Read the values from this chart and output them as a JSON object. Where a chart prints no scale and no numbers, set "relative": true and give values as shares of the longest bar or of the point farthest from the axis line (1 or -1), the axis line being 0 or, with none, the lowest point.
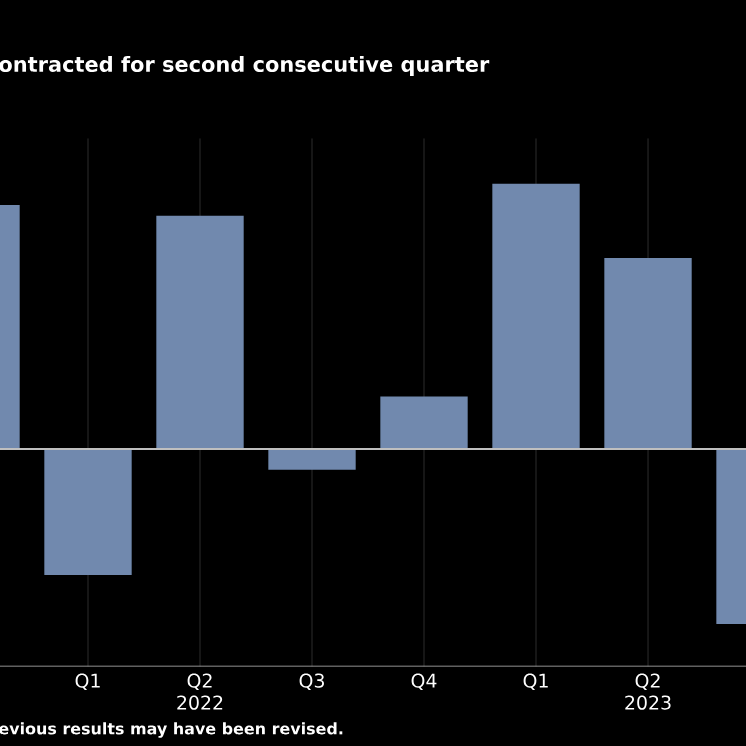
{
  "chart_data": {
    "type": "bar",
    "title": "ontracted for second consecutive quarter",
    "categories": [
      null,
      "Q1",
      "Q2 2022",
      "Q3",
      "Q4",
      "Q1",
      "Q2 2023",
      null
    ],
    "values": [
      0.92,
      -0.475,
      0.88,
      -0.078,
      0.198,
      1,
      0.72,
      -0.66
    ],
    "color": "#7189ae",
    "relative": true,
    "grid": true,
    "annotations": [
      "evious results may have been revised."
    ]
  }
}
